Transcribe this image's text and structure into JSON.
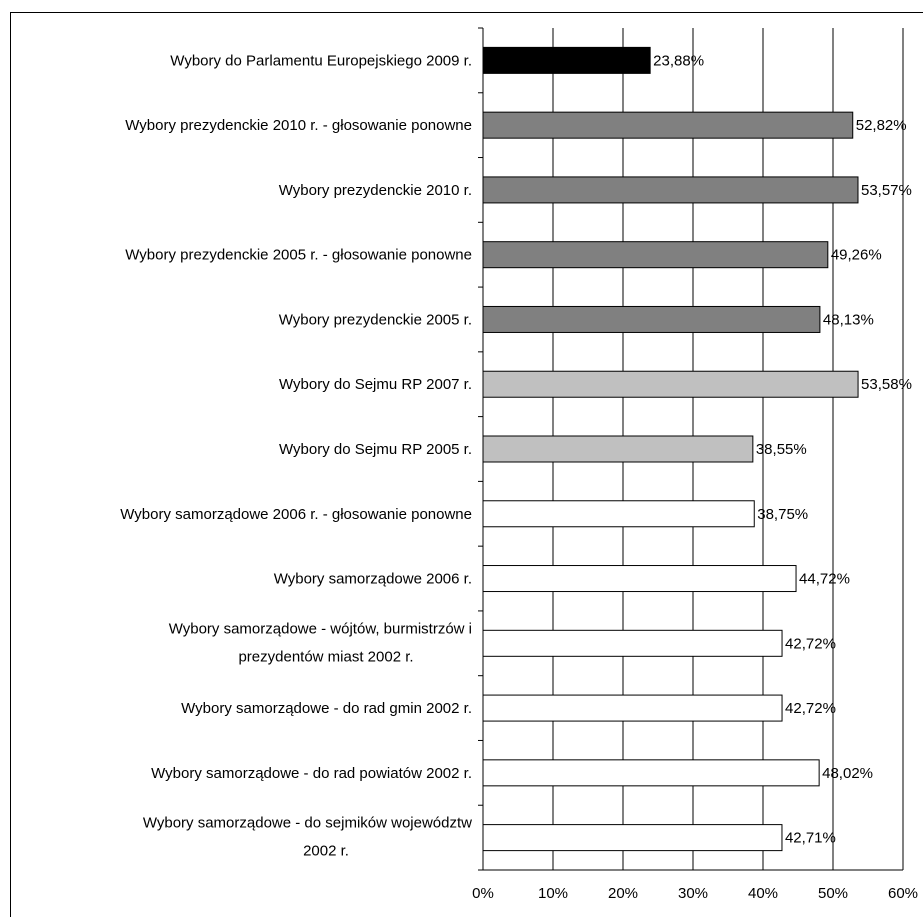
{
  "chart_data": {
    "type": "bar",
    "orientation": "horizontal",
    "title": "",
    "xlabel": "",
    "ylabel": "",
    "xlim": [
      0,
      60
    ],
    "x_ticks": [
      "0%",
      "10%",
      "20%",
      "30%",
      "40%",
      "50%",
      "60%"
    ],
    "grid": "vertical",
    "legend": "none",
    "categories": [
      [
        "Wybory do Parlamentu Europejskiego 2009 r."
      ],
      [
        "Wybory prezydenckie 2010 r. - głosowanie ponowne"
      ],
      [
        "Wybory prezydenckie 2010 r."
      ],
      [
        "Wybory prezydenckie 2005 r. - głosowanie ponowne"
      ],
      [
        "Wybory prezydenckie 2005 r."
      ],
      [
        "Wybory do Sejmu RP 2007 r."
      ],
      [
        "Wybory do Sejmu RP 2005 r."
      ],
      [
        "Wybory samorządowe 2006 r. - głosowanie ponowne"
      ],
      [
        "Wybory samorządowe 2006 r."
      ],
      [
        "Wybory samorządowe - wójtów, burmistrzów i",
        "prezydentów miast 2002 r."
      ],
      [
        "Wybory samorządowe - do rad gmin 2002 r."
      ],
      [
        "Wybory samorządowe - do rad powiatów 2002 r."
      ],
      [
        "Wybory samorządowe - do sejmików województw",
        "2002 r."
      ]
    ],
    "values": [
      23.88,
      52.82,
      53.57,
      49.26,
      48.13,
      53.58,
      38.55,
      38.75,
      44.72,
      42.72,
      42.72,
      48.02,
      42.71
    ],
    "value_labels": [
      "23,88%",
      "52,82%",
      "53,57%",
      "49,26%",
      "48,13%",
      "53,58%",
      "38,55%",
      "38,75%",
      "44,72%",
      "42,72%",
      "42,72%",
      "48,02%",
      "42,71%"
    ],
    "bar_colors": [
      "#000000",
      "#808080",
      "#808080",
      "#808080",
      "#808080",
      "#c0c0c0",
      "#c0c0c0",
      "#ffffff",
      "#ffffff",
      "#ffffff",
      "#ffffff",
      "#ffffff",
      "#ffffff"
    ]
  }
}
